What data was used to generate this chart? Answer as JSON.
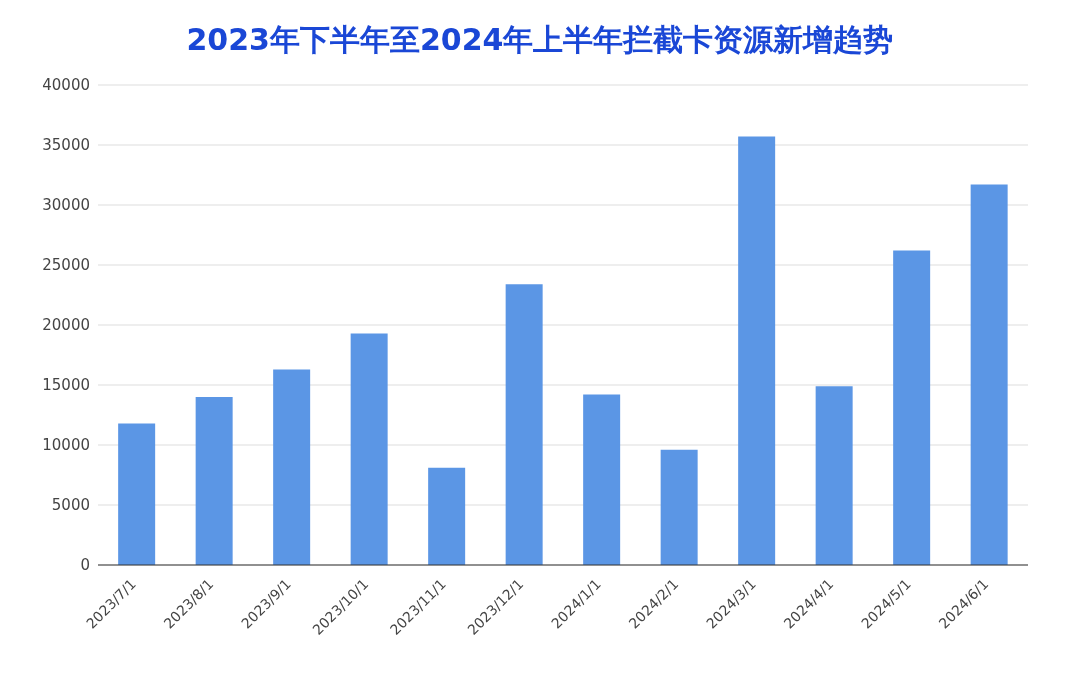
{
  "chart_data": {
    "type": "bar",
    "title": "2023年下半年至2024年上半年拦截卡资源新增趋势",
    "categories": [
      "2023/7/1",
      "2023/8/1",
      "2023/9/1",
      "2023/10/1",
      "2023/11/1",
      "2023/12/1",
      "2024/1/1",
      "2024/2/1",
      "2024/3/1",
      "2024/4/1",
      "2024/5/1",
      "2024/6/1"
    ],
    "values": [
      11800,
      14000,
      16300,
      19300,
      8100,
      23400,
      14200,
      9600,
      35700,
      14900,
      26200,
      31700
    ],
    "color": "#5b96e5",
    "ylim": [
      0,
      40000
    ],
    "yticks": [
      0,
      5000,
      10000,
      15000,
      20000,
      25000,
      30000,
      35000,
      40000
    ],
    "grid": "y"
  }
}
